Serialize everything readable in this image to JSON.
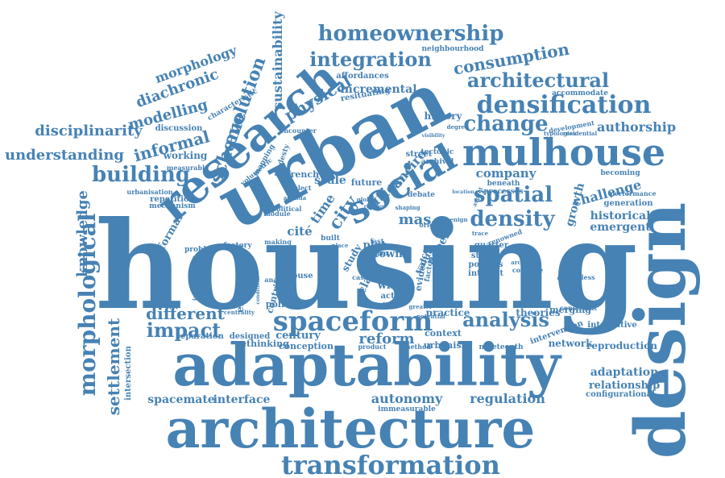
{
  "palette": {
    "word_color": "#4682b4",
    "background": "#ffffff"
  },
  "words": [
    "housing",
    "design",
    "urban",
    "adaptability",
    "architecture",
    "research",
    "social",
    "mulhouse",
    "spaceform",
    "transformation",
    "densification",
    "homeownership",
    "integration",
    "architectural",
    "change",
    "density",
    "spatial",
    "building",
    "consumption",
    "evolution",
    "scheme",
    "morphological",
    "knowledge",
    "impact",
    "analysis",
    "different",
    "informal",
    "modelling",
    "diachronic",
    "morphology",
    "disciplinarity",
    "understanding",
    "sustainability",
    "physical",
    "incremental",
    "reform",
    "autonomy",
    "regulation",
    "spacemate",
    "interface",
    "settlement",
    "century",
    "rethinking",
    "conception",
    "urbanism",
    "designed",
    "separation",
    "intersection",
    "authorship",
    "historical",
    "emergent",
    "challenge",
    "growth",
    "company",
    "adaptation",
    "relationship",
    "configurational",
    "reproduction",
    "network",
    "integrative",
    "generation",
    "performance",
    "becoming",
    "theories",
    "practice",
    "merging",
    "constraint",
    "context",
    "nineteenth",
    "intervention",
    "city",
    "cities",
    "cité",
    "mas",
    "time",
    "french",
    "scale",
    "future",
    "janeiro",
    "history",
    "street",
    "tectonic",
    "archival",
    "debate",
    "plot",
    "town",
    "paper",
    "class",
    "whole",
    "action",
    "house",
    "case",
    "study",
    "value",
    "term",
    "evidence",
    "factor",
    "policy",
    "formal",
    "environment",
    "contribution",
    "repetition",
    "mechanism",
    "urbanisation",
    "working",
    "discussion",
    "characteristic",
    "mapping",
    "modesty",
    "neighbourhood",
    "affordances",
    "resituating",
    "accommodate",
    "development",
    "typologies",
    "residential",
    "encounter",
    "volumetric",
    "quarter",
    "studies",
    "policies",
    "interest",
    "original",
    "benign",
    "combine",
    "architect",
    "authorless",
    "renowned",
    "analyse",
    "global",
    "problem",
    "factory",
    "module",
    "political",
    "making",
    "built",
    "fast",
    "neglect",
    "agenda",
    "place",
    "centrality",
    "independent",
    "inherent",
    "processes",
    "beneath",
    "rising",
    "greater",
    "potential",
    "product",
    "method",
    "immeasurable",
    "measurable",
    "visibility",
    "degree",
    "trace",
    "aspect",
    "shaping",
    "location",
    "conditions",
    "relation"
  ]
}
